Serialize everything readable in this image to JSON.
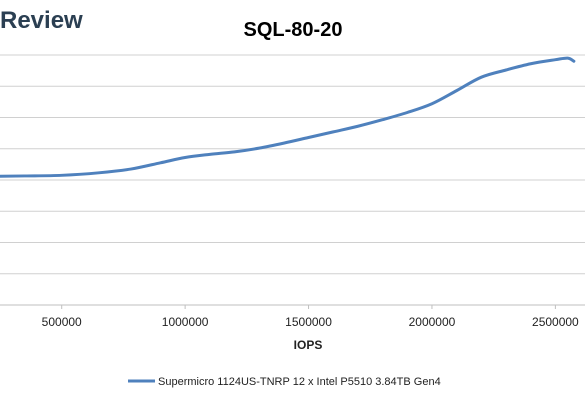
{
  "brand": {
    "text": "Review"
  },
  "chart_data": {
    "type": "line",
    "title": "SQL-80-20",
    "xlabel": "IOPS",
    "ylabel": "",
    "xlim": [
      250000,
      2620000
    ],
    "ylim": [
      0,
      8
    ],
    "x_ticks": [
      500000,
      1000000,
      1500000,
      2000000,
      2500000
    ],
    "x_tick_labels": [
      "500000",
      "1000000",
      "1500000",
      "2000000",
      "2500000"
    ],
    "y_gridlines": [
      0,
      1,
      2,
      3,
      4,
      5,
      6,
      7,
      8
    ],
    "grid": true,
    "legend": {
      "position": "bottom"
    },
    "series": [
      {
        "name": "Supermicro 1124US-TNRP 12 x Intel P5510 3.84TB Gen4",
        "color": "#4f81bd",
        "points": [
          {
            "x": 250000,
            "y": 4.12
          },
          {
            "x": 350000,
            "y": 4.13
          },
          {
            "x": 500000,
            "y": 4.15
          },
          {
            "x": 650000,
            "y": 4.23
          },
          {
            "x": 780000,
            "y": 4.35
          },
          {
            "x": 900000,
            "y": 4.55
          },
          {
            "x": 1000000,
            "y": 4.72
          },
          {
            "x": 1100000,
            "y": 4.82
          },
          {
            "x": 1200000,
            "y": 4.9
          },
          {
            "x": 1300000,
            "y": 5.02
          },
          {
            "x": 1400000,
            "y": 5.18
          },
          {
            "x": 1500000,
            "y": 5.36
          },
          {
            "x": 1600000,
            "y": 5.54
          },
          {
            "x": 1700000,
            "y": 5.72
          },
          {
            "x": 1800000,
            "y": 5.93
          },
          {
            "x": 1900000,
            "y": 6.16
          },
          {
            "x": 2000000,
            "y": 6.44
          },
          {
            "x": 2100000,
            "y": 6.86
          },
          {
            "x": 2200000,
            "y": 7.29
          },
          {
            "x": 2300000,
            "y": 7.52
          },
          {
            "x": 2400000,
            "y": 7.72
          },
          {
            "x": 2500000,
            "y": 7.85
          },
          {
            "x": 2550000,
            "y": 7.9
          },
          {
            "x": 2575000,
            "y": 7.8
          }
        ]
      }
    ]
  }
}
